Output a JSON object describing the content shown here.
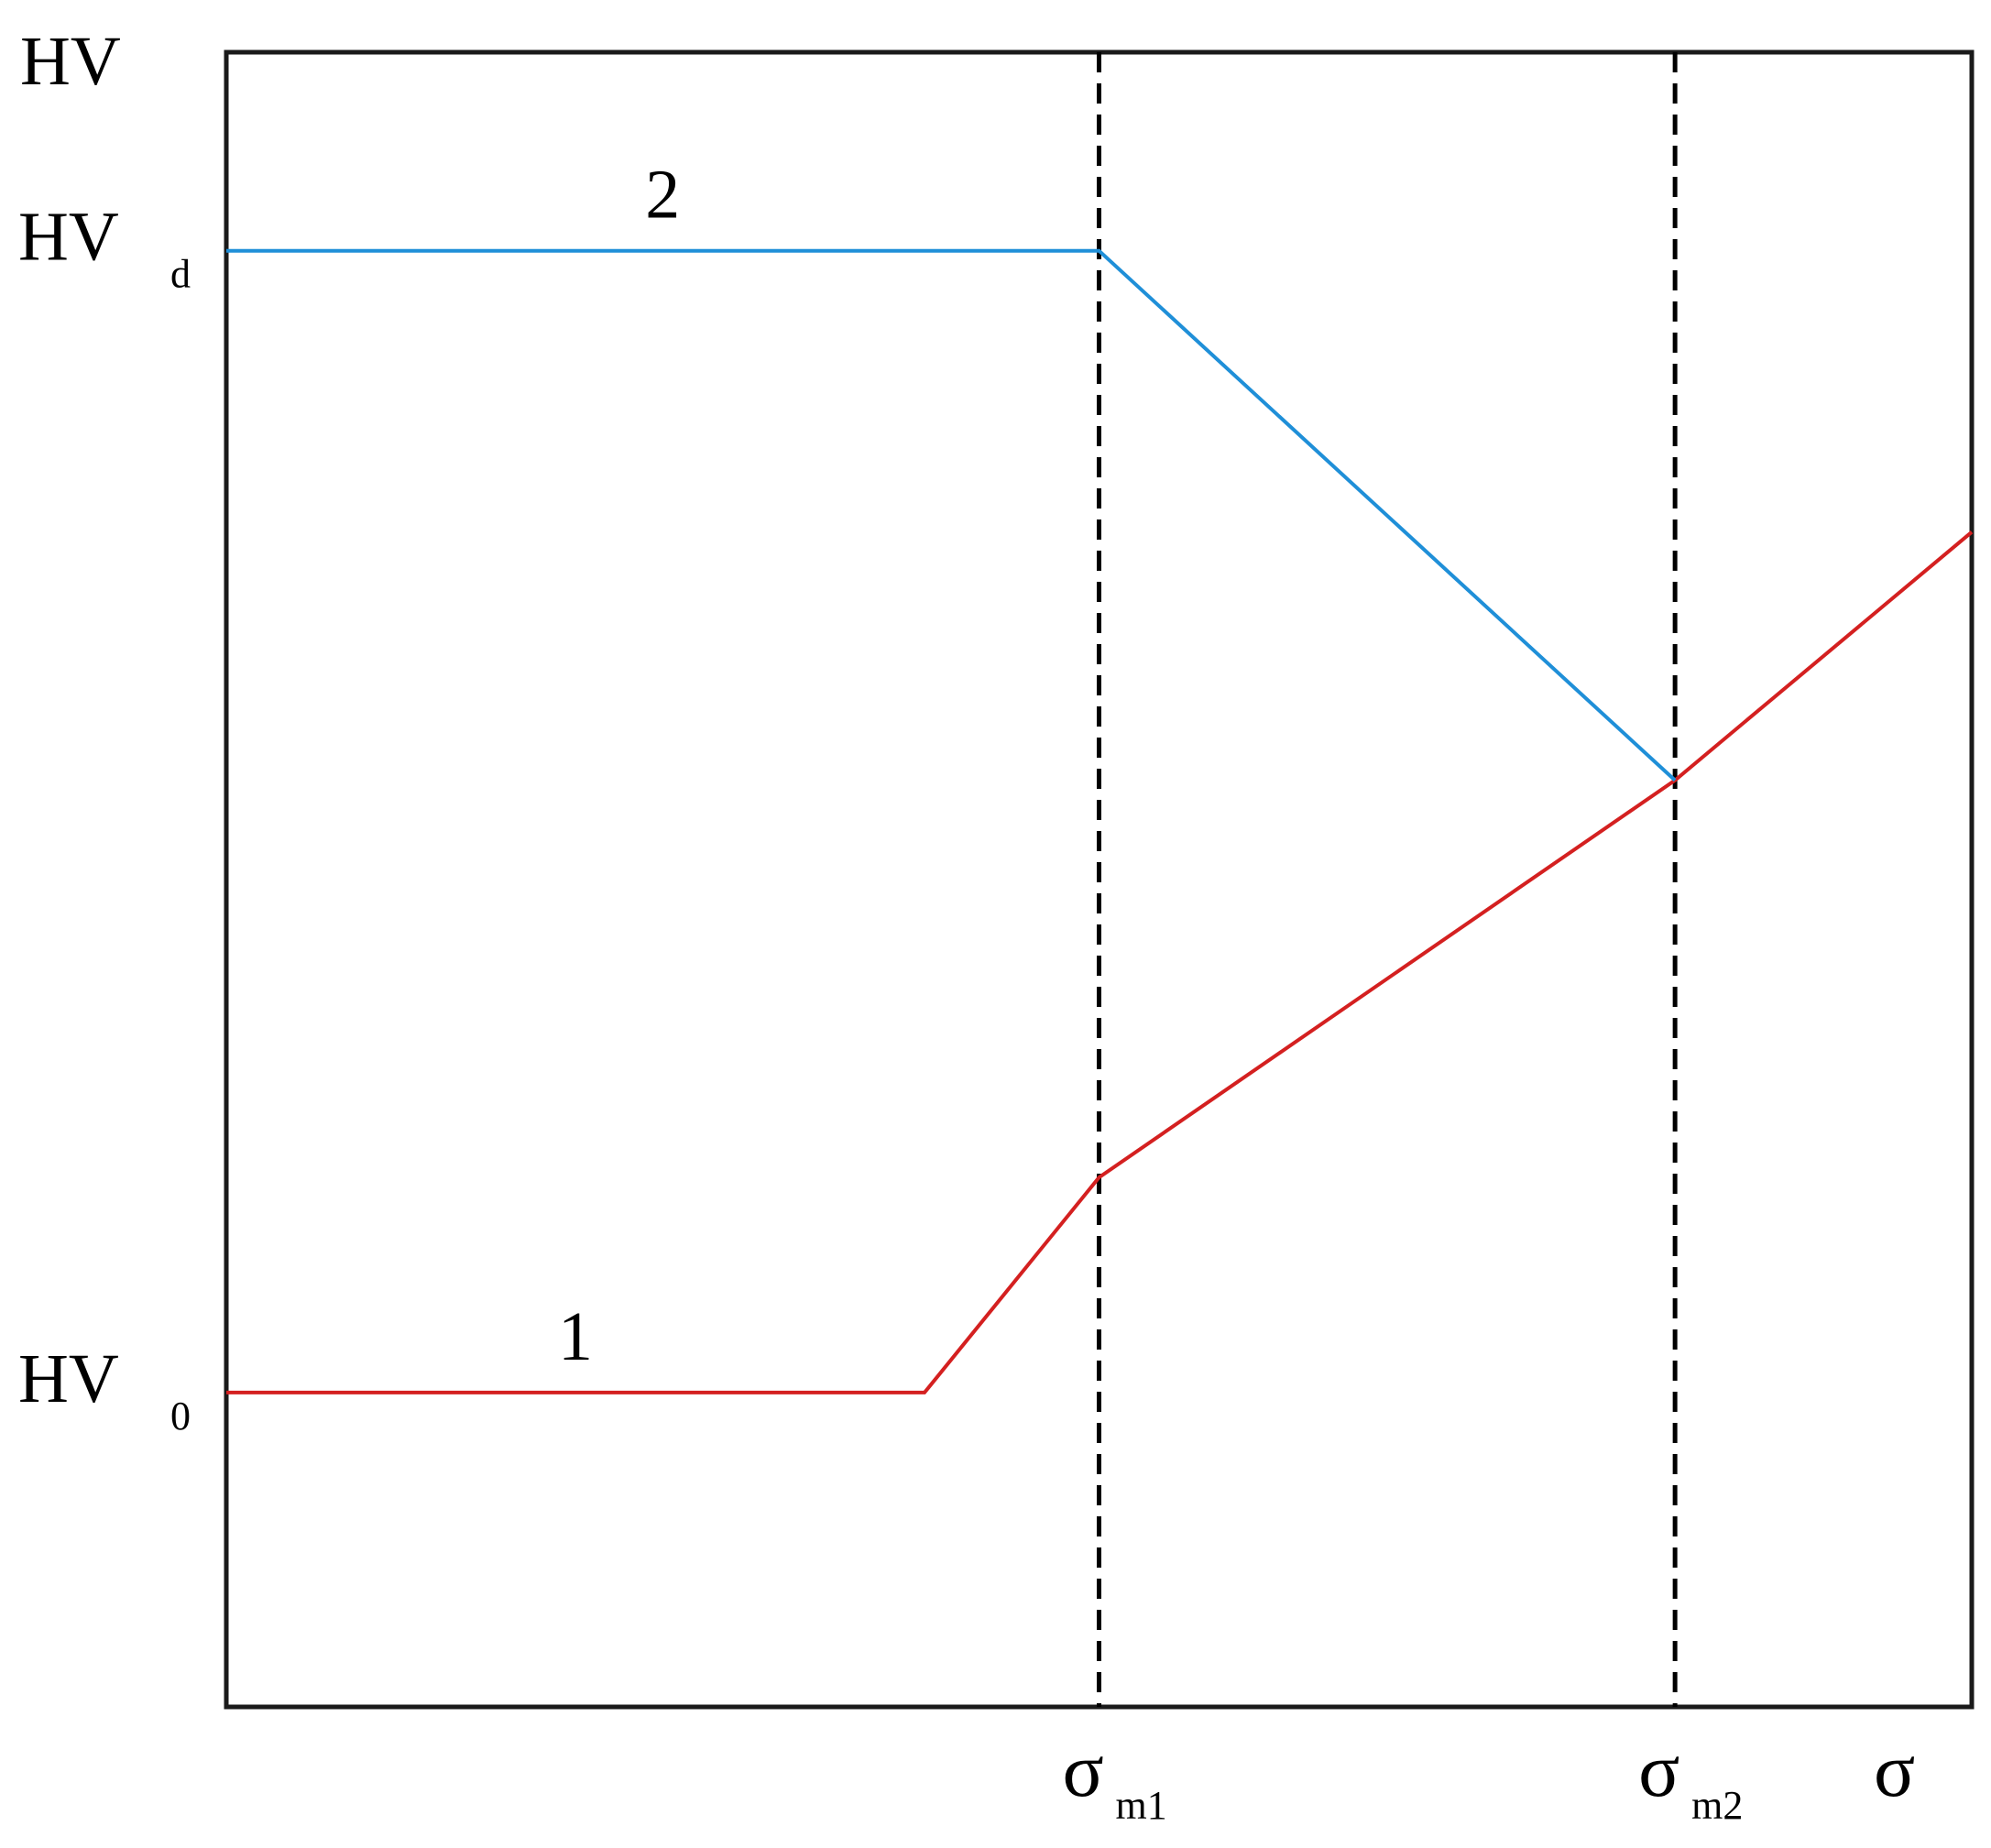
{
  "chart_data": {
    "type": "line",
    "title": "",
    "xlabel": "σ",
    "ylabel": "HV",
    "x_ticks": [
      {
        "x": 0.5,
        "main": "σ",
        "sub": "m1"
      },
      {
        "x": 0.83,
        "main": "σ",
        "sub": "m2"
      }
    ],
    "y_ticks": [
      {
        "y": 0.19,
        "main": "HV",
        "sub": "0"
      },
      {
        "y": 0.88,
        "main": "HV",
        "sub": "d"
      }
    ],
    "xlim": [
      0,
      1
    ],
    "ylim": [
      0,
      1
    ],
    "grid": false,
    "series": [
      {
        "name": "1",
        "color": "#d42020",
        "points": [
          [
            0,
            0.19
          ],
          [
            0.4,
            0.19
          ],
          [
            0.5,
            0.32
          ],
          [
            0.83,
            0.56
          ],
          [
            1.0,
            0.71
          ]
        ]
      },
      {
        "name": "2",
        "color": "#1f8fd8",
        "points": [
          [
            0,
            0.88
          ],
          [
            0.5,
            0.88
          ],
          [
            0.83,
            0.56
          ]
        ]
      }
    ],
    "reference_lines": [
      {
        "x": 0.5,
        "style": "dashed",
        "color": "#000000"
      },
      {
        "x": 0.83,
        "style": "dashed",
        "color": "#000000"
      }
    ]
  }
}
